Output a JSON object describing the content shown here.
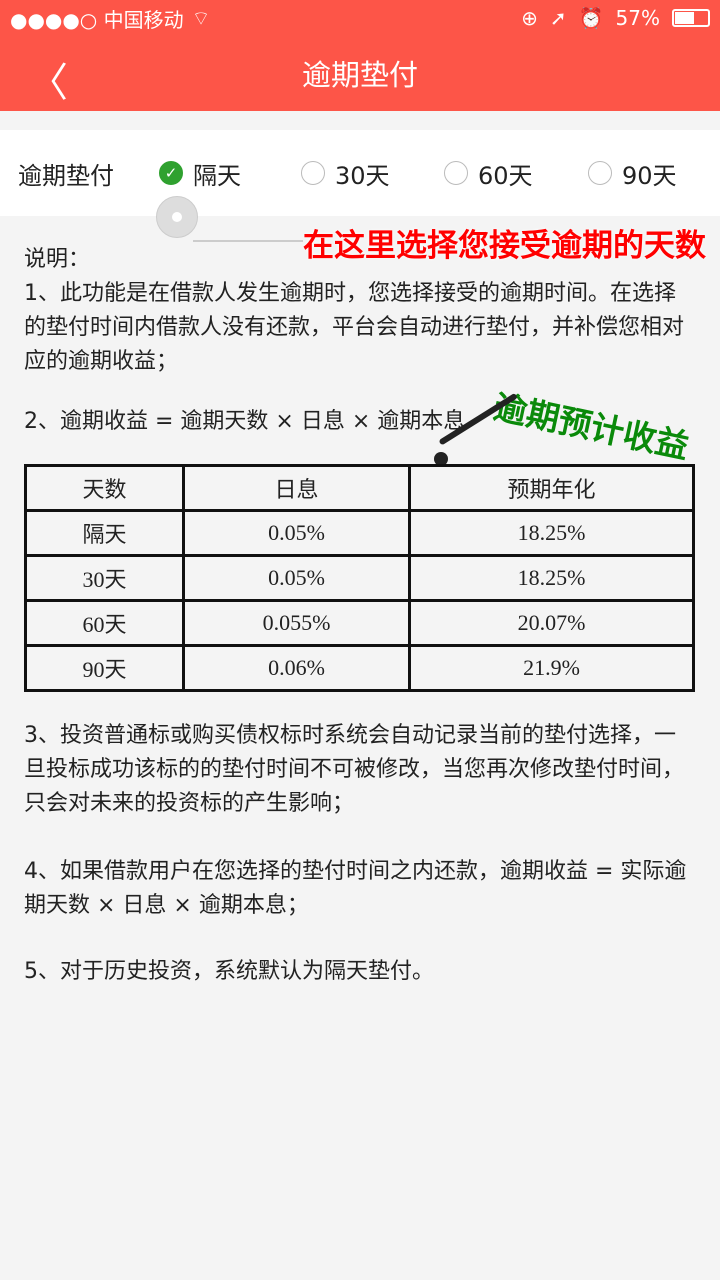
{
  "status": {
    "carrier": "●●●●○ 中国移动",
    "battery": "57%",
    "battery_level": 0.57
  },
  "header": {
    "title": "逾期垫付",
    "back": "〈"
  },
  "selector": {
    "label": "逾期垫付",
    "options": [
      {
        "label": "隔天",
        "selected": true
      },
      {
        "label": "30天",
        "selected": false
      },
      {
        "label": "60天",
        "selected": false
      },
      {
        "label": "90天",
        "selected": false
      }
    ]
  },
  "annotations": {
    "select_hint": "在这里选择您接受逾期的天数",
    "income_hint": "逾期预计收益"
  },
  "notes": {
    "heading": "说明：",
    "p1": "1、此功能是在借款人发生逾期时，您选择接受的逾期时间。在选择的垫付时间内借款人没有还款，平台会自动进行垫付，并补偿您相对应的逾期收益；",
    "p2": "2、逾期收益 = 逾期天数 × 日息 × 逾期本息",
    "p3": "3、投资普通标或购买债权标时系统会自动记录当前的垫付选择，一旦投标成功该标的的垫付时间不可被修改，当您再次修改垫付时间，只会对未来的投资标的产生影响；",
    "p4": "4、如果借款用户在您选择的垫付时间之内还款，逾期收益 = 实际逾期天数 × 日息 × 逾期本息；",
    "p5": "5、对于历史投资，系统默认为隔天垫付。"
  },
  "table": {
    "headers": [
      "天数",
      "日息",
      "预期年化"
    ],
    "rows": [
      [
        "隔天",
        "0.05%",
        "18.25%"
      ],
      [
        "30天",
        "0.05%",
        "18.25%"
      ],
      [
        "60天",
        "0.055%",
        "20.07%"
      ],
      [
        "90天",
        "0.06%",
        "21.9%"
      ]
    ]
  }
}
